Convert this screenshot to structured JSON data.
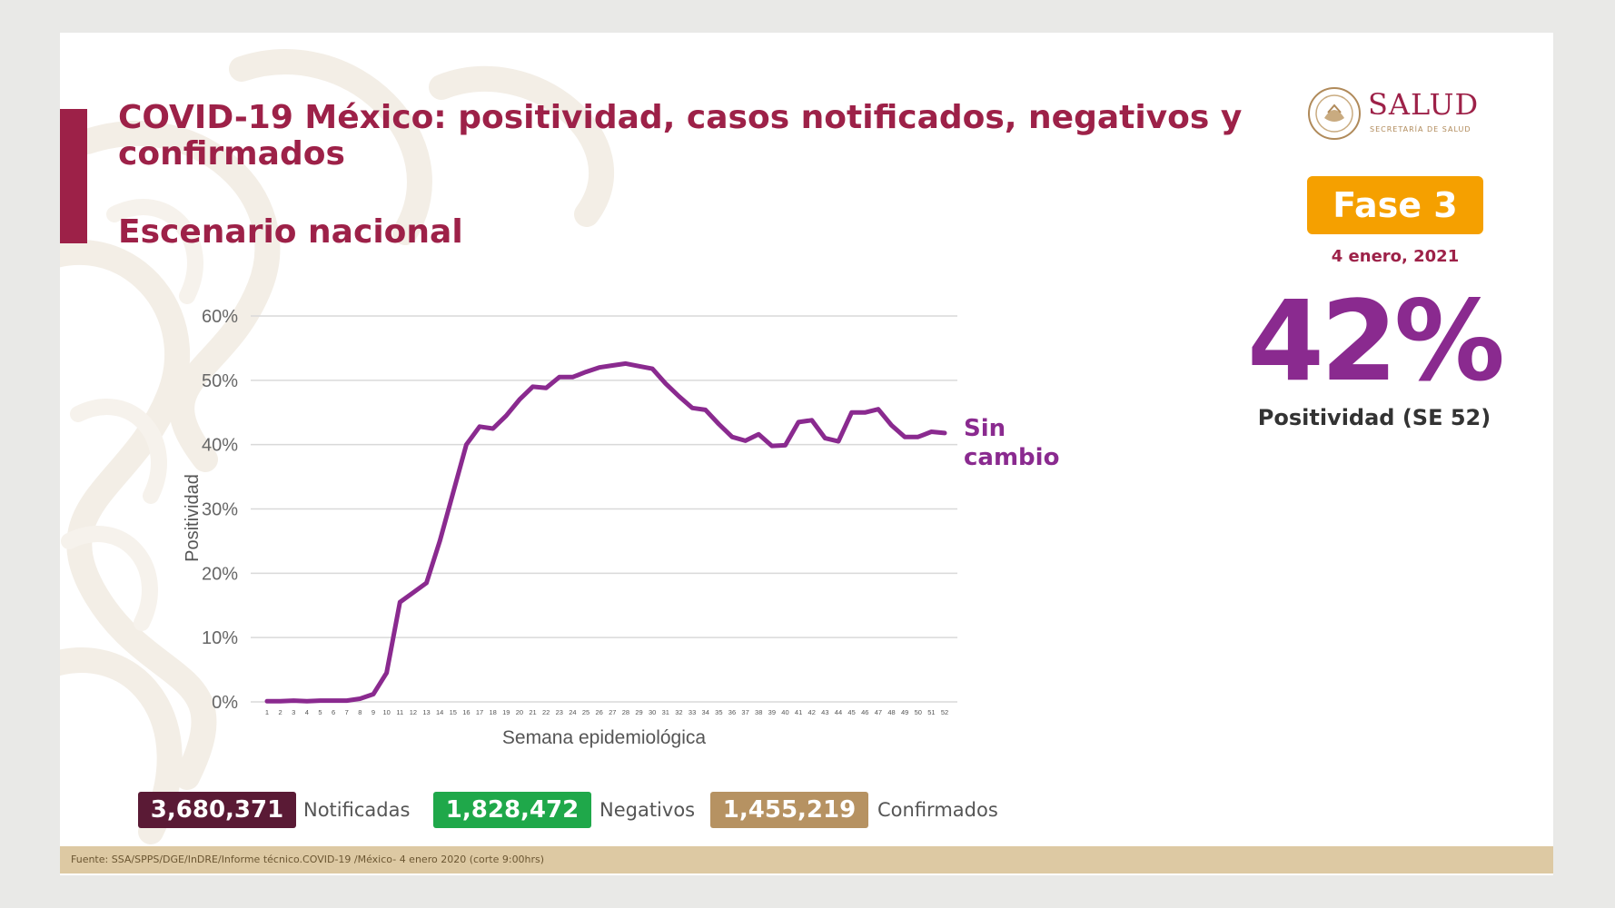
{
  "header": {
    "title": "COVID-19 México: positividad, casos notificados, negativos y confirmados",
    "subtitle": "Escenario nacional"
  },
  "logo": {
    "name": "SALUD",
    "sub": "SECRETARÍA DE SALUD"
  },
  "phase": {
    "label": "Fase 3",
    "color": "#f5a000"
  },
  "date": "4 enero, 2021",
  "highlight": {
    "value": "42%",
    "label": "Positividad (SE 52)"
  },
  "annotation": {
    "line1": "Sin",
    "line2": "cambio"
  },
  "colors": {
    "primary": "#9d2148",
    "line": "#8a2a8f",
    "notificadas": "#5a1a35",
    "negativos": "#1fa84a",
    "confirmados": "#b69262"
  },
  "stats": {
    "notificadas": {
      "value": "3,680,371",
      "label": "Notificadas"
    },
    "negativos": {
      "value": "1,828,472",
      "label": "Negativos"
    },
    "confirmados": {
      "value": "1,455,219",
      "label": "Confirmados"
    }
  },
  "footer": "Fuente: SSA/SPPS/DGE/InDRE/Informe técnico.COVID-19 /México- 4 enero 2020 (corte 9:00hrs)",
  "chart_data": {
    "type": "line",
    "title": "",
    "xlabel": "Semana epidemiológica",
    "ylabel": "Positividad",
    "ylim": [
      0,
      60
    ],
    "ytick_values": [
      0,
      10,
      20,
      30,
      40,
      50,
      60
    ],
    "ytick_labels": [
      "0%",
      "10%",
      "20%",
      "30%",
      "40%",
      "50%",
      "60%"
    ],
    "grid": true,
    "categories": [
      "1",
      "2",
      "3",
      "4",
      "5",
      "6",
      "7",
      "8",
      "9",
      "10",
      "11",
      "12",
      "13",
      "14",
      "15",
      "16",
      "17",
      "18",
      "19",
      "20",
      "21",
      "22",
      "23",
      "24",
      "25",
      "26",
      "27",
      "28",
      "29",
      "30",
      "31",
      "32",
      "33",
      "34",
      "35",
      "36",
      "37",
      "38",
      "39",
      "40",
      "41",
      "42",
      "43",
      "44",
      "45",
      "46",
      "47",
      "48",
      "49",
      "50",
      "51",
      "52"
    ],
    "series": [
      {
        "name": "Positividad",
        "values": [
          0.1,
          0.1,
          0.2,
          0.1,
          0.2,
          0.2,
          0.2,
          0.5,
          1.2,
          4.5,
          15.5,
          17,
          18.5,
          25,
          32.5,
          40,
          42.8,
          42.5,
          44.5,
          47,
          49,
          48.8,
          50.5,
          50.5,
          51.3,
          52,
          52.3,
          52.6,
          52.2,
          51.8,
          49.5,
          47.5,
          45.7,
          45.4,
          43.2,
          41.2,
          40.6,
          41.6,
          39.8,
          39.9,
          43.5,
          43.8,
          41,
          40.5,
          45,
          45,
          45.5,
          43,
          41.2,
          41.2,
          42,
          41.8
        ]
      }
    ]
  }
}
